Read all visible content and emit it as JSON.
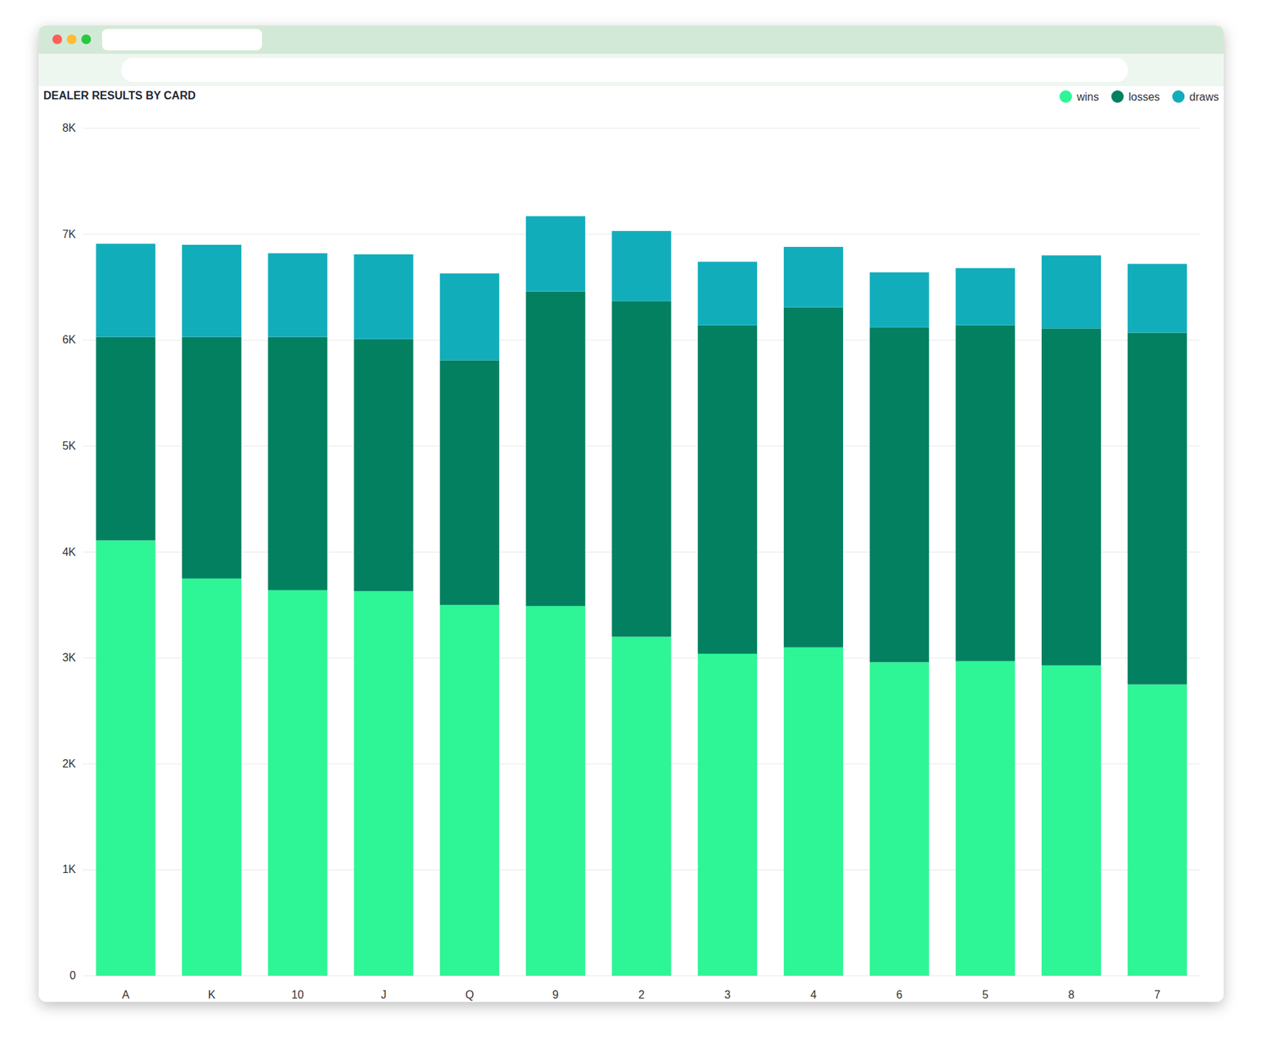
{
  "chart_data": {
    "type": "bar",
    "title": "DEALER RESULTS BY CARD",
    "stacked": true,
    "grid": true,
    "legend": "top-right",
    "categories": [
      "A",
      "K",
      "10",
      "J",
      "Q",
      "9",
      "2",
      "3",
      "4",
      "6",
      "5",
      "8",
      "7"
    ],
    "series": [
      {
        "name": "wins",
        "color": "#2ef596",
        "values": [
          4110,
          3750,
          3640,
          3630,
          3500,
          3490,
          3200,
          3040,
          3100,
          2960,
          2970,
          2930,
          2750
        ]
      },
      {
        "name": "losses",
        "color": "#038060",
        "values": [
          1920,
          2280,
          2390,
          2380,
          2310,
          2970,
          3170,
          3100,
          3210,
          3160,
          3170,
          3180,
          3320
        ]
      },
      {
        "name": "draws",
        "color": "#12adbb",
        "values": [
          880,
          870,
          790,
          800,
          820,
          710,
          660,
          600,
          570,
          520,
          540,
          690,
          650
        ]
      }
    ],
    "ylim": [
      0,
      8000
    ],
    "yticks": [
      0,
      {
        "value": 1000,
        "label": "1K"
      },
      {
        "value": 2000,
        "label": "2K"
      },
      {
        "value": 3000,
        "label": "3K"
      },
      {
        "value": 4000,
        "label": "4K"
      },
      {
        "value": 5000,
        "label": "5K"
      },
      {
        "value": 6000,
        "label": "6K"
      },
      {
        "value": 7000,
        "label": "7K"
      },
      {
        "value": 8000,
        "label": "8K"
      }
    ]
  }
}
